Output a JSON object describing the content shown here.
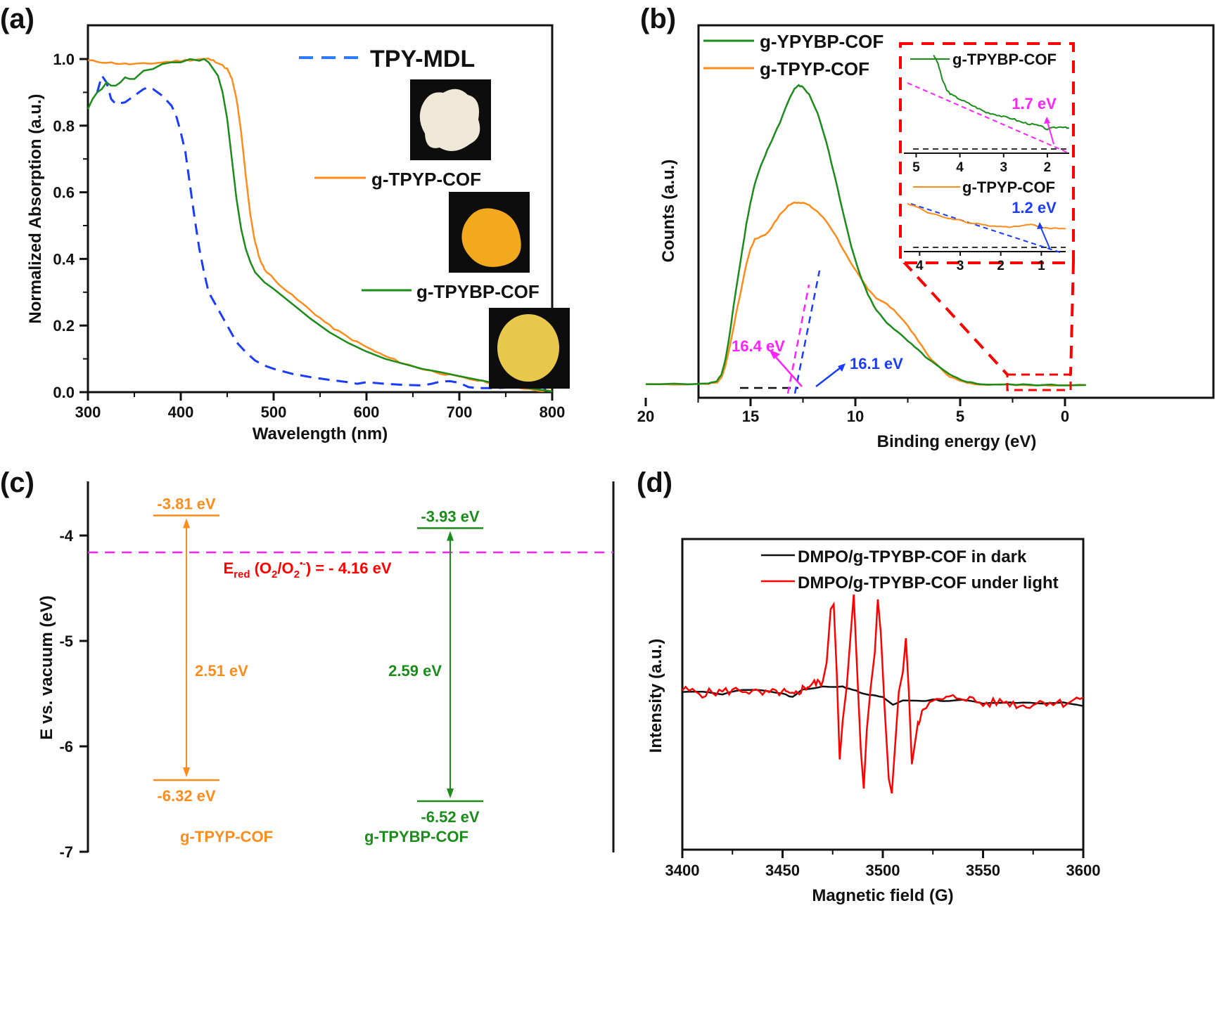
{
  "colors": {
    "orange": "#ff8c1a",
    "green": "#1a8c1a",
    "blue": "#1a3cff",
    "blue_legend": "#2a7bff",
    "magenta": "#ff22ff",
    "red": "#ff0000",
    "black": "#111111",
    "axis": "#111111"
  },
  "chart_data": [
    {
      "id": "a",
      "panel_label": "(a)",
      "type": "line",
      "xlabel": "Wavelength (nm)",
      "ylabel": "Normalized Absorption (a.u.)",
      "xlim": [
        300,
        800
      ],
      "ylim": [
        0.0,
        1.1
      ],
      "xticks": [
        300,
        400,
        500,
        600,
        700,
        800
      ],
      "xtick_labels": [
        "300",
        "400",
        "500",
        "600",
        "700",
        "800"
      ],
      "yticks": [
        0.0,
        0.2,
        0.4,
        0.6,
        0.8,
        1.0
      ],
      "ytick_labels": [
        "0.0",
        "0.2",
        "0.4",
        "0.6",
        "0.8",
        "1.0"
      ],
      "legend_position": "right",
      "series": [
        {
          "name": "TPY-MDL",
          "style": "dashed",
          "color_key": "blue",
          "photo": "white powder",
          "x": [
            310,
            315,
            320,
            325,
            330,
            340,
            350,
            360,
            365,
            370,
            380,
            390,
            395,
            400,
            405,
            410,
            415,
            420,
            425,
            430,
            440,
            450,
            460,
            470,
            480,
            490,
            500,
            520,
            540,
            560,
            580,
            590,
            600,
            620,
            640,
            660,
            670,
            680,
            690,
            700,
            710,
            720,
            740,
            760,
            780,
            790,
            800
          ],
          "y": [
            0.9,
            0.95,
            0.93,
            0.88,
            0.865,
            0.87,
            0.89,
            0.91,
            0.915,
            0.91,
            0.89,
            0.86,
            0.83,
            0.78,
            0.72,
            0.62,
            0.52,
            0.43,
            0.36,
            0.3,
            0.25,
            0.2,
            0.15,
            0.12,
            0.095,
            0.08,
            0.07,
            0.055,
            0.045,
            0.037,
            0.03,
            0.025,
            0.03,
            0.025,
            0.022,
            0.02,
            0.025,
            0.032,
            0.033,
            0.028,
            0.015,
            0.012,
            0.012,
            0.015,
            0.012,
            0.005,
            0.02
          ]
        },
        {
          "name": "g-TPYP-COF",
          "style": "solid",
          "color_key": "orange",
          "photo": "orange powder",
          "x": [
            300,
            320,
            340,
            360,
            380,
            400,
            420,
            430,
            440,
            450,
            455,
            460,
            465,
            470,
            475,
            480,
            485,
            490,
            500,
            520,
            540,
            560,
            580,
            600,
            620,
            640,
            660,
            680,
            700,
            720,
            740,
            760,
            780,
            800
          ],
          "y": [
            0.995,
            0.99,
            0.985,
            0.985,
            0.99,
            0.995,
            1.0,
            1.0,
            0.99,
            0.97,
            0.94,
            0.88,
            0.78,
            0.65,
            0.53,
            0.45,
            0.4,
            0.37,
            0.34,
            0.29,
            0.245,
            0.2,
            0.165,
            0.135,
            0.108,
            0.086,
            0.07,
            0.057,
            0.045,
            0.035,
            0.025,
            0.015,
            0.008,
            0.002
          ]
        },
        {
          "name": "g-TPYBP-COF",
          "style": "solid",
          "color_key": "green",
          "photo": "yellow powder",
          "x": [
            300,
            305,
            310,
            315,
            320,
            325,
            330,
            335,
            340,
            345,
            350,
            360,
            370,
            380,
            390,
            400,
            410,
            420,
            425,
            430,
            440,
            445,
            450,
            455,
            460,
            465,
            470,
            475,
            480,
            490,
            500,
            520,
            540,
            560,
            580,
            600,
            620,
            640,
            660,
            680,
            700,
            720,
            740,
            760,
            780,
            800
          ],
          "y": [
            0.85,
            0.88,
            0.9,
            0.91,
            0.93,
            0.92,
            0.92,
            0.93,
            0.945,
            0.94,
            0.94,
            0.965,
            0.97,
            0.985,
            0.99,
            0.99,
            1.0,
            0.995,
            1.0,
            0.99,
            0.95,
            0.9,
            0.82,
            0.7,
            0.58,
            0.49,
            0.43,
            0.39,
            0.36,
            0.33,
            0.31,
            0.265,
            0.22,
            0.18,
            0.148,
            0.122,
            0.1,
            0.085,
            0.07,
            0.06,
            0.048,
            0.037,
            0.026,
            0.016,
            0.01,
            0.002
          ]
        }
      ]
    },
    {
      "id": "b",
      "panel_label": "(b)",
      "type": "line",
      "xlabel": "Binding energy (eV)",
      "ylabel": "Counts (a.u.)",
      "xlim": [
        21,
        -1
      ],
      "ylim": [
        0,
        1.05
      ],
      "xticks": [
        20,
        15,
        10,
        5,
        0
      ],
      "xtick_labels": [
        "20",
        "15",
        "10",
        "5",
        "0"
      ],
      "yticks": [],
      "legend_position": "top-left",
      "series": [
        {
          "name": "g-YPYBP-COF",
          "color_key": "green",
          "x": [
            20,
            18,
            17,
            16.6,
            16.4,
            16.2,
            16.0,
            15.8,
            15.5,
            15.2,
            15.0,
            14.8,
            14.5,
            14.2,
            14.0,
            13.6,
            13.2,
            12.9,
            12.7,
            12.5,
            12.2,
            11.8,
            11.4,
            11.0,
            10.6,
            10.2,
            9.8,
            9.4,
            9.0,
            8.5,
            8.0,
            7.5,
            7.0,
            6.5,
            6.0,
            5.5,
            5.0,
            4.5,
            4.0,
            3.0,
            2.0,
            1.0,
            0,
            -1
          ],
          "y": [
            0.01,
            0.01,
            0.012,
            0.02,
            0.04,
            0.09,
            0.17,
            0.27,
            0.4,
            0.53,
            0.6,
            0.66,
            0.72,
            0.77,
            0.8,
            0.86,
            0.93,
            0.97,
            0.98,
            0.975,
            0.95,
            0.89,
            0.8,
            0.69,
            0.57,
            0.46,
            0.37,
            0.3,
            0.25,
            0.21,
            0.18,
            0.15,
            0.12,
            0.09,
            0.065,
            0.04,
            0.025,
            0.015,
            0.01,
            0.008,
            0.008,
            0.007,
            0.007,
            0.007
          ]
        },
        {
          "name": "g-TPYP-COF",
          "color_key": "orange",
          "x": [
            20,
            18,
            17,
            16.6,
            16.4,
            16.2,
            16.0,
            15.8,
            15.5,
            15.2,
            15.0,
            14.8,
            14.5,
            14.2,
            14.0,
            13.6,
            13.2,
            12.9,
            12.7,
            12.5,
            12.2,
            11.8,
            11.4,
            11.0,
            10.6,
            10.2,
            9.8,
            9.4,
            9.0,
            8.5,
            8.0,
            7.5,
            7.0,
            6.5,
            6.0,
            5.5,
            5.0,
            4.5,
            4.0,
            3.0,
            2.0,
            1.0,
            0,
            -1
          ],
          "y": [
            0.01,
            0.01,
            0.012,
            0.015,
            0.03,
            0.07,
            0.13,
            0.2,
            0.3,
            0.4,
            0.45,
            0.48,
            0.49,
            0.5,
            0.52,
            0.56,
            0.59,
            0.6,
            0.6,
            0.6,
            0.59,
            0.57,
            0.54,
            0.5,
            0.45,
            0.4,
            0.36,
            0.32,
            0.29,
            0.27,
            0.24,
            0.2,
            0.15,
            0.1,
            0.065,
            0.035,
            0.02,
            0.012,
            0.01,
            0.008,
            0.008,
            0.007,
            0.007,
            0.007
          ]
        }
      ],
      "annotations": [
        {
          "text": "16.4 eV",
          "color_key": "magenta",
          "x": 16.4
        },
        {
          "text": "16.1 eV",
          "color_key": "blue",
          "x": 16.1
        }
      ],
      "insets": [
        {
          "legend": "g-TPYBP-COF",
          "color_key": "green",
          "annotation": "1.7 eV",
          "annotation_color_key": "magenta",
          "xlim": [
            5.2,
            1.5
          ],
          "xticks": [
            5,
            4,
            3,
            2
          ],
          "xtick_labels": [
            "5",
            "4",
            "3",
            "2"
          ],
          "x": [
            4.6,
            4.5,
            4.4,
            4.3,
            4.2,
            4.0,
            3.8,
            3.6,
            3.4,
            3.2,
            3.0,
            2.8,
            2.6,
            2.4,
            2.2,
            2.0,
            1.8,
            1.6,
            1.5
          ],
          "y": [
            1.0,
            0.9,
            0.72,
            0.6,
            0.55,
            0.5,
            0.45,
            0.4,
            0.35,
            0.33,
            0.3,
            0.28,
            0.24,
            0.22,
            0.2,
            0.16,
            0.18,
            0.19,
            0.17
          ]
        },
        {
          "legend": "g-TPYP-COF",
          "color_key": "orange",
          "annotation": "1.2 eV",
          "annotation_color_key": "blue",
          "xlim": [
            4.3,
            0.4
          ],
          "xticks": [
            4,
            3,
            2,
            1
          ],
          "xtick_labels": [
            "4",
            "3",
            "2",
            "1"
          ],
          "x": [
            4.3,
            4.0,
            3.8,
            3.6,
            3.3,
            3.0,
            2.8,
            2.6,
            2.3,
            2.0,
            1.8,
            1.6,
            1.4,
            1.2,
            1.0,
            0.8,
            0.6,
            0.4
          ],
          "y": [
            0.85,
            0.75,
            0.65,
            0.6,
            0.52,
            0.48,
            0.42,
            0.4,
            0.36,
            0.34,
            0.33,
            0.34,
            0.38,
            0.38,
            0.32,
            0.3,
            0.3,
            0.29
          ]
        }
      ]
    },
    {
      "id": "c",
      "panel_label": "(c)",
      "type": "diagram",
      "ylabel": "E vs. vacuum (eV)",
      "ylim": [
        -7,
        -3.5
      ],
      "yticks": [
        -4,
        -5,
        -6,
        -7
      ],
      "ytick_labels": [
        "-4",
        "-5",
        "-6",
        "-7"
      ],
      "reference": {
        "value": -4.16,
        "label_main": "E",
        "label_sub": "red",
        "label_rest_1": " (O",
        "label_sub2": "2",
        "label_rest_2": "/O",
        "label_sub3": "2",
        "label_sup": "•-",
        "label_rest_3": ") = - 4.16 eV"
      },
      "materials": [
        {
          "name": "g-TPYP-COF",
          "color_key": "orange",
          "cb": -3.81,
          "vb": -6.32,
          "cb_label": "-3.81 eV",
          "vb_label": "-6.32 eV",
          "gap_label": "2.51 eV"
        },
        {
          "name": "g-TPYBP-COF",
          "color_key": "green",
          "cb": -3.93,
          "vb": -6.52,
          "cb_label": "-3.93 eV",
          "vb_label": "-6.52 eV",
          "gap_label": "2.59 eV"
        }
      ]
    },
    {
      "id": "d",
      "panel_label": "(d)",
      "type": "line",
      "xlabel": "Magnetic field (G)",
      "ylabel": "Intensity (a.u.)",
      "xlim": [
        3400,
        3600
      ],
      "ylim": [
        -1.1,
        1.1
      ],
      "xticks": [
        3400,
        3450,
        3500,
        3550,
        3600
      ],
      "xtick_labels": [
        "3400",
        "3450",
        "3500",
        "3550",
        "3600"
      ],
      "legend_position": "top-right",
      "series": [
        {
          "name": "DMPO/g-TPYBP-COF in dark",
          "color_key": "black",
          "x": [
            3400,
            3410,
            3420,
            3430,
            3440,
            3450,
            3455,
            3460,
            3470,
            3480,
            3485,
            3490,
            3495,
            3500,
            3505,
            3510,
            3520,
            3525,
            3530,
            3540,
            3550,
            3560,
            3570,
            3580,
            3590,
            3600
          ],
          "y": [
            0.0,
            0.0,
            -0.03,
            0.02,
            0.01,
            -0.02,
            -0.06,
            0.02,
            0.05,
            0.05,
            0.02,
            -0.02,
            -0.04,
            -0.06,
            -0.14,
            -0.09,
            -0.1,
            -0.08,
            -0.1,
            -0.08,
            -0.12,
            -0.12,
            -0.11,
            -0.12,
            -0.11,
            -0.15
          ]
        },
        {
          "name": "DMPO/g-TPYBP-COF under light",
          "color_key": "red",
          "x": [
            3400,
            3410,
            3420,
            3430,
            3440,
            3450,
            3455,
            3460,
            3465,
            3470,
            3472,
            3474,
            3475.5,
            3477,
            3478.5,
            3480,
            3482,
            3484,
            3485.5,
            3487,
            3489,
            3490.5,
            3492,
            3494,
            3496,
            3497.5,
            3499,
            3501,
            3503,
            3504.5,
            3506,
            3508,
            3510,
            3511.5,
            3513,
            3514.5,
            3517,
            3520,
            3530,
            3540,
            3550,
            3560,
            3570,
            3580,
            3590,
            3600
          ],
          "y": [
            0.02,
            -0.02,
            0.0,
            0.02,
            -0.03,
            0.0,
            -0.05,
            0.03,
            0.08,
            0.1,
            0.3,
            0.85,
            0.9,
            0.2,
            -0.7,
            -0.3,
            0.05,
            0.6,
            1.0,
            0.3,
            -0.6,
            -1.0,
            -0.4,
            0.05,
            0.4,
            0.95,
            0.6,
            -0.2,
            -0.9,
            -1.05,
            -0.6,
            0.0,
            0.2,
            0.55,
            0.0,
            -0.75,
            -0.4,
            -0.15,
            -0.08,
            -0.05,
            -0.13,
            -0.1,
            -0.15,
            -0.1,
            -0.12,
            -0.06
          ]
        }
      ]
    }
  ]
}
